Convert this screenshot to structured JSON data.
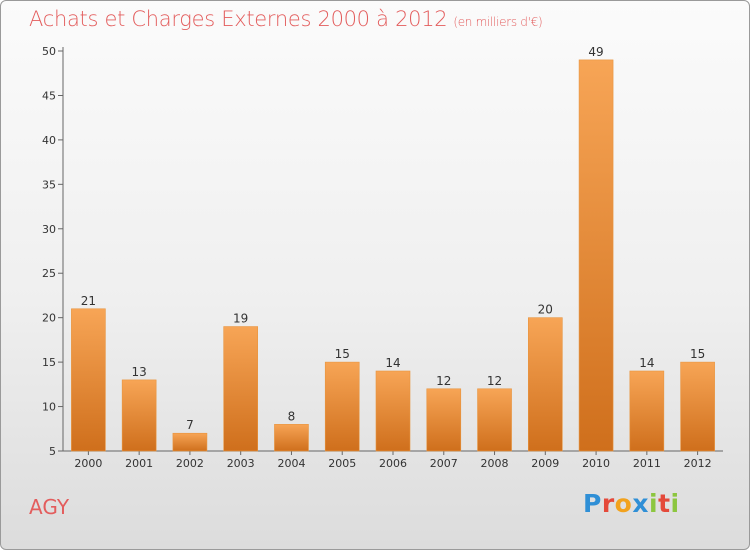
{
  "header": {
    "title": "Achats et Charges Externes 2000 à 2012",
    "subtitle": "(en milliers d'€)"
  },
  "footer": {
    "commune": "AGY",
    "logo_letters": [
      {
        "char": "P",
        "color": "#2f8fd6"
      },
      {
        "char": "r",
        "color": "#e4493a"
      },
      {
        "char": "o",
        "color": "#f2a21d"
      },
      {
        "char": "x",
        "color": "#2f8fd6"
      },
      {
        "char": "i",
        "color": "#8cc63f"
      },
      {
        "char": "t",
        "color": "#e4493a"
      },
      {
        "char": "i",
        "color": "#8cc63f"
      }
    ]
  },
  "colors": {
    "bar_top": "#f7a556",
    "bar_bottom": "#cf6f1c",
    "title": "#e35d5d"
  },
  "chart_data": {
    "type": "bar",
    "title": "Achats et Charges Externes 2000 à 2012",
    "subtitle": "(en milliers d'€)",
    "categories": [
      "2000",
      "2001",
      "2002",
      "2003",
      "2004",
      "2005",
      "2006",
      "2007",
      "2008",
      "2009",
      "2010",
      "2011",
      "2012"
    ],
    "values": [
      21,
      13,
      7,
      19,
      8,
      15,
      14,
      12,
      12,
      20,
      49,
      14,
      15
    ],
    "ylim": [
      5,
      50
    ],
    "yticks": [
      5,
      10,
      15,
      20,
      25,
      30,
      35,
      40,
      45,
      50
    ],
    "grid": false,
    "data_labels": true
  }
}
